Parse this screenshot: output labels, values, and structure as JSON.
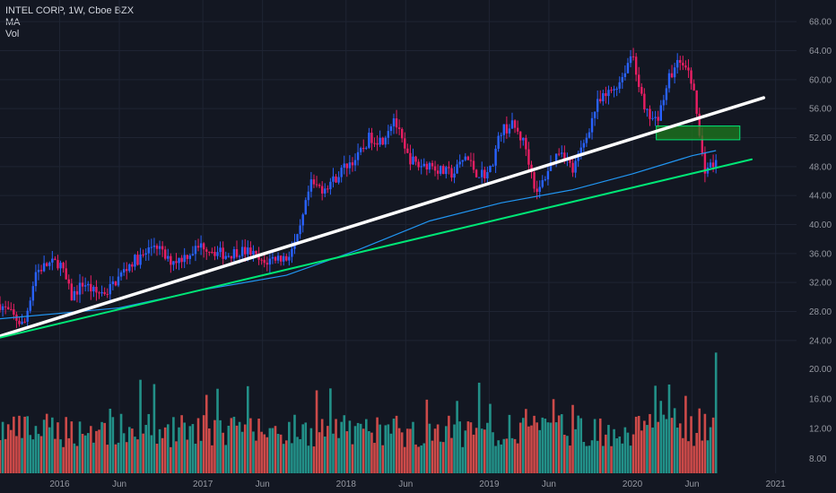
{
  "legend": {
    "symbol_line": "INTEL CORP, 1W, Cboe BZX",
    "ma_label": "MA",
    "vol_label": "Vol"
  },
  "colors": {
    "background": "#131722",
    "up": "#2962ff",
    "down": "#e91e63",
    "vol_up": "#26a69a",
    "vol_down": "#ef5350",
    "ma": "#2196f3",
    "trend_white": "#ffffff",
    "trend_green": "#00e676",
    "zone_fill": "#1e7b1e",
    "zone_border": "#00e676"
  },
  "chart_data": {
    "type": "candlestick",
    "title": "INTEL CORP, 1W, Cboe BZX",
    "price_ylim": [
      22,
      70
    ],
    "price_ticks": [
      "68.00",
      "64.00",
      "60.00",
      "56.00",
      "52.00",
      "48.00",
      "44.00",
      "40.00",
      "36.00",
      "32.00",
      "28.00",
      "24.00"
    ],
    "volume_ticks": [
      "20.00",
      "16.00",
      "12.00",
      "8.00"
    ],
    "x_ticks": [
      "2016",
      "Jun",
      "2017",
      "Jun",
      "2018",
      "Jun",
      "2019",
      "Jun",
      "2020",
      "Jun",
      "2021"
    ],
    "price_path": [
      [
        "2015-08",
        29.0
      ],
      [
        "2015-09",
        27.5
      ],
      [
        "2015-10",
        26.0
      ],
      [
        "2015-11",
        33.5
      ],
      [
        "2015-12",
        34.5
      ],
      [
        "2016-01",
        34.8
      ],
      [
        "2016-02",
        30.0
      ],
      [
        "2016-03",
        32.0
      ],
      [
        "2016-04",
        30.5
      ],
      [
        "2016-05",
        30.8
      ],
      [
        "2016-06",
        32.8
      ],
      [
        "2016-07",
        34.8
      ],
      [
        "2016-08",
        35.6
      ],
      [
        "2016-09",
        37.5
      ],
      [
        "2016-10",
        35.0
      ],
      [
        "2016-11",
        35.2
      ],
      [
        "2016-12",
        36.2
      ],
      [
        "2017-01",
        37.2
      ],
      [
        "2017-02",
        36.3
      ],
      [
        "2017-03",
        35.8
      ],
      [
        "2017-04",
        36.4
      ],
      [
        "2017-05",
        36.2
      ],
      [
        "2017-06",
        34.5
      ],
      [
        "2017-07",
        35.5
      ],
      [
        "2017-08",
        35.4
      ],
      [
        "2017-09",
        38.1
      ],
      [
        "2017-10",
        45.5
      ],
      [
        "2017-11",
        45.0
      ],
      [
        "2017-12",
        46.2
      ],
      [
        "2018-01",
        48.2
      ],
      [
        "2018-02",
        49.3
      ],
      [
        "2018-03",
        52.1
      ],
      [
        "2018-04",
        51.6
      ],
      [
        "2018-05",
        54.8
      ],
      [
        "2018-06",
        49.7
      ],
      [
        "2018-07",
        48.1
      ],
      [
        "2018-08",
        48.4
      ],
      [
        "2018-09",
        47.3
      ],
      [
        "2018-10",
        47.0
      ],
      [
        "2018-11",
        49.4
      ],
      [
        "2018-12",
        47.0
      ],
      [
        "2019-01",
        47.1
      ],
      [
        "2019-02",
        53.0
      ],
      [
        "2019-03",
        53.7
      ],
      [
        "2019-04",
        51.0
      ],
      [
        "2019-05",
        44.0
      ],
      [
        "2019-06",
        47.9
      ],
      [
        "2019-07",
        50.6
      ],
      [
        "2019-08",
        47.4
      ],
      [
        "2019-09",
        51.5
      ],
      [
        "2019-10",
        56.5
      ],
      [
        "2019-11",
        58.1
      ],
      [
        "2019-12",
        59.9
      ],
      [
        "2020-01",
        63.9
      ],
      [
        "2020-02",
        55.5
      ],
      [
        "2020-03",
        54.1
      ],
      [
        "2020-04",
        60.0
      ],
      [
        "2020-05",
        62.9
      ],
      [
        "2020-06",
        59.8
      ],
      [
        "2020-07",
        47.7
      ],
      [
        "2020-08",
        48.5
      ]
    ],
    "ma_path": [
      [
        "2015-08",
        27.0
      ],
      [
        "2016-06",
        28.5
      ],
      [
        "2017-01",
        31.0
      ],
      [
        "2017-08",
        33.0
      ],
      [
        "2018-02",
        36.5
      ],
      [
        "2018-08",
        40.5
      ],
      [
        "2019-02",
        43.0
      ],
      [
        "2019-08",
        44.8
      ],
      [
        "2020-01",
        47.0
      ],
      [
        "2020-06",
        49.5
      ],
      [
        "2020-08",
        50.2
      ]
    ],
    "trendlines": [
      {
        "from": [
          "2015-08",
          24.6
        ],
        "to": [
          "2020-12",
          57.5
        ]
      },
      {
        "from": [
          "2015-08",
          24.4
        ],
        "to": [
          "2020-11",
          49.0
        ]
      }
    ],
    "zone": {
      "from": "2020-03",
      "to": "2020-10",
      "low": 51.7,
      "high": 53.6
    }
  }
}
